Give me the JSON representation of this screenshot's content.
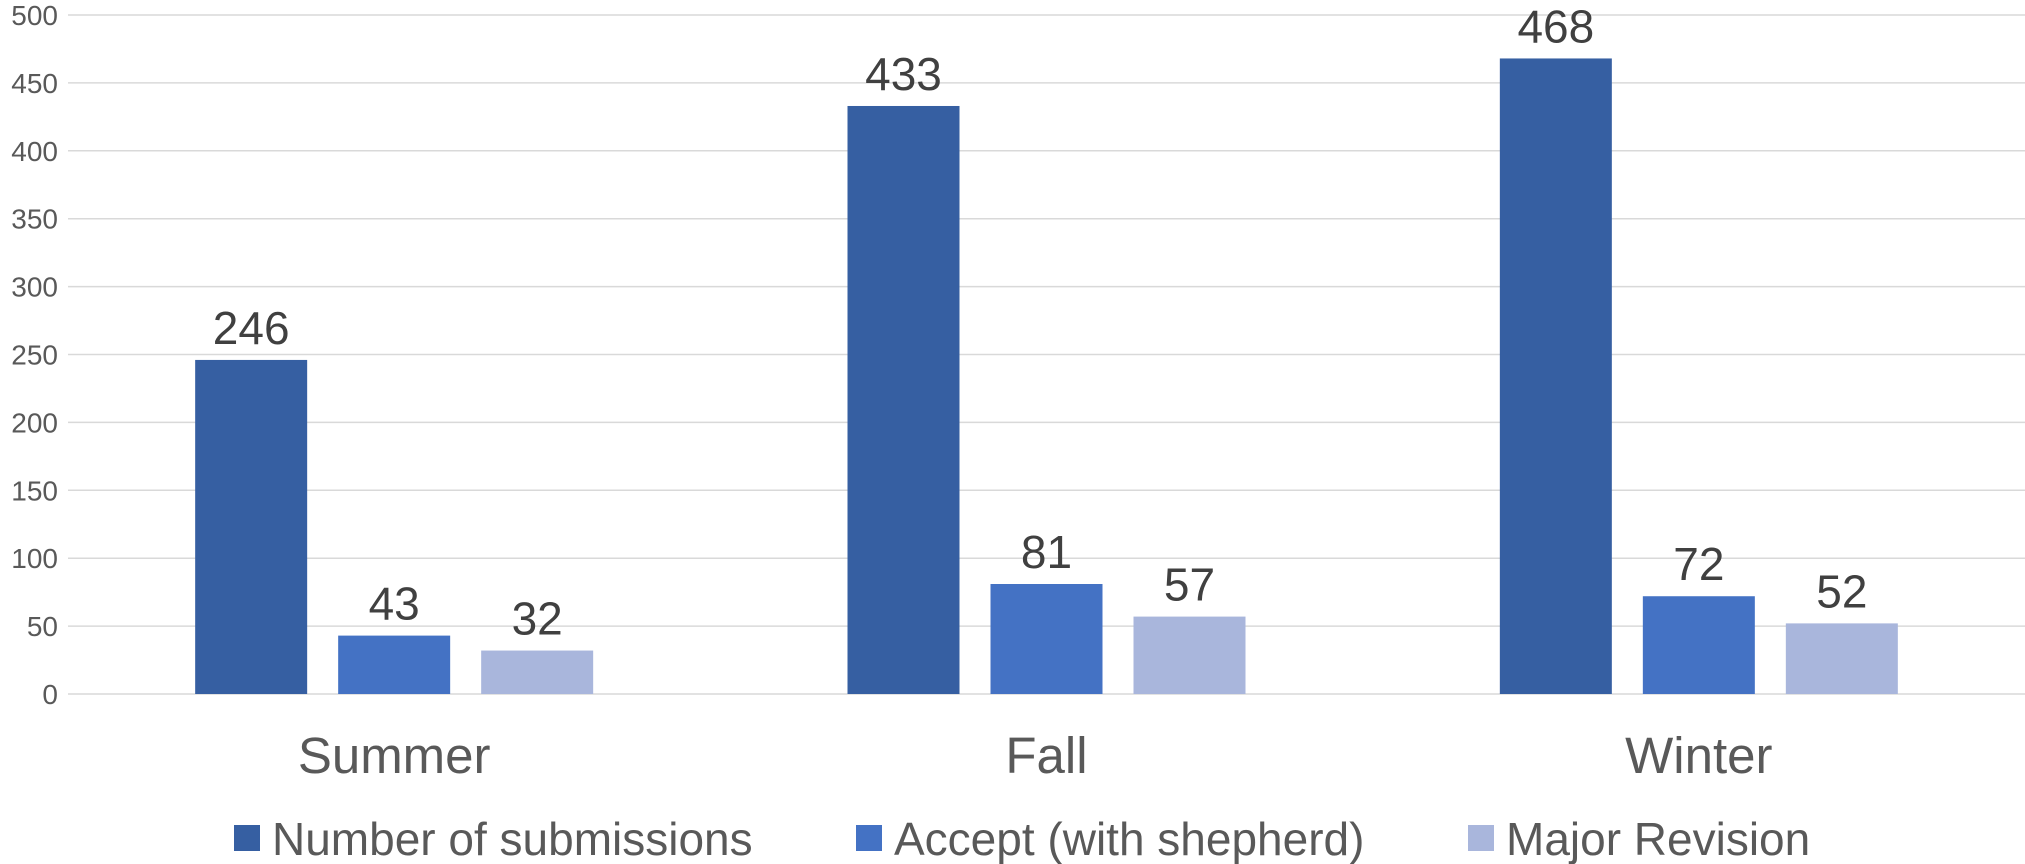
{
  "chart_data": {
    "type": "bar",
    "categories": [
      "Summer",
      "Fall",
      "Winter"
    ],
    "series": [
      {
        "name": "Number of submissions",
        "values": [
          246,
          433,
          468
        ],
        "color": "#365FA2"
      },
      {
        "name": "Accept (with shepherd)",
        "values": [
          43,
          81,
          72
        ],
        "color": "#4472C4"
      },
      {
        "name": "Major Revision",
        "values": [
          32,
          57,
          52
        ],
        "color": "#A9B6DC"
      }
    ],
    "title": "",
    "xlabel": "",
    "ylabel": "",
    "ylim": [
      0,
      500
    ],
    "yticks": [
      0,
      50,
      100,
      150,
      200,
      250,
      300,
      350,
      400,
      450,
      500
    ],
    "grid": true,
    "data_labels": true,
    "legend_position": "bottom"
  }
}
